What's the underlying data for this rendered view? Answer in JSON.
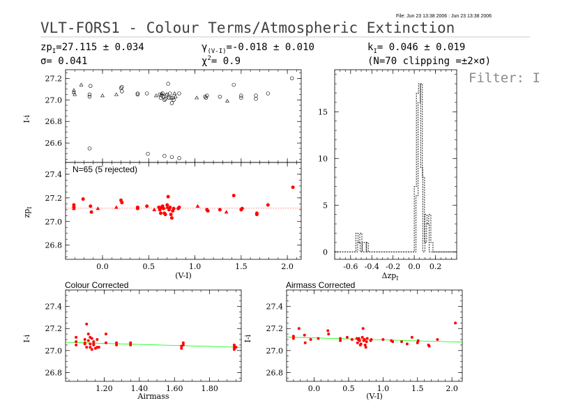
{
  "header": {
    "file_line": "File: Jun 23 13:38 2006 : Jun 23 13:38 2006",
    "title": "VLT-FORS1 - Colour Terms/Atmospheric Extinction",
    "zp": "zp",
    "zp_sub": "I",
    "zp_value": "=27.115 ± 0.034",
    "sigma": "σ= 0.041",
    "gamma": "γ",
    "gamma_sub": "(V-I)",
    "gamma_value": "=-0.018 ± 0.010",
    "chi": "χ",
    "chi_sup": "2",
    "chi_value": "=   0.9",
    "k": "k",
    "k_sub": "I",
    "k_value": "= 0.046 ± 0.019",
    "clip": "(N=70 clipping =±2×σ)",
    "filter": "Filter: I"
  },
  "colors": {
    "red": "#ff0000",
    "green": "#00ff00",
    "black": "#000000",
    "gray": "#c8c8c8"
  },
  "chart_data": [
    {
      "id": "top",
      "type": "scatter",
      "ylabel": "I-i",
      "ylim": [
        26.42,
        27.28
      ],
      "xlim": [
        -0.4,
        2.15
      ],
      "yticks": [
        26.6,
        26.8,
        27.0,
        27.2
      ],
      "xticks": [
        0,
        0.5,
        1,
        1.5,
        2
      ],
      "tick_labels_x": [],
      "markers": {
        "circle": [
          [
            -0.14,
            27.05
          ],
          [
            -0.14,
            27.03
          ],
          [
            -0.14,
            26.55
          ],
          [
            -0.13,
            27.13
          ],
          [
            0.2,
            27.11
          ],
          [
            0.21,
            27.12
          ],
          [
            0.21,
            27.08
          ],
          [
            0.38,
            27.05
          ],
          [
            0.38,
            27.06
          ],
          [
            0.48,
            27.06
          ],
          [
            0.49,
            26.5
          ],
          [
            0.62,
            27.05
          ],
          [
            0.63,
            27.02
          ],
          [
            0.64,
            27.04
          ],
          [
            0.65,
            27.06
          ],
          [
            0.66,
            27.03
          ],
          [
            0.67,
            27.0
          ],
          [
            0.68,
            27.01
          ],
          [
            0.69,
            27.04
          ],
          [
            0.7,
            27.05
          ],
          [
            0.71,
            27.15
          ],
          [
            0.72,
            27.02
          ],
          [
            0.73,
            27.06
          ],
          [
            0.74,
            27.02
          ],
          [
            0.75,
            26.97
          ],
          [
            0.76,
            27.02
          ],
          [
            0.77,
            27.0
          ],
          [
            0.67,
            26.48
          ],
          [
            0.75,
            26.47
          ],
          [
            0.83,
            27.06
          ],
          [
            0.83,
            26.46
          ],
          [
            1.11,
            27.03
          ],
          [
            1.12,
            27.02
          ],
          [
            1.13,
            27.04
          ],
          [
            1.27,
            27.03
          ],
          [
            1.42,
            27.14
          ],
          [
            1.5,
            27.04
          ],
          [
            1.5,
            27.02
          ],
          [
            1.66,
            27.01
          ],
          [
            1.66,
            27.04
          ],
          [
            1.79,
            27.06
          ],
          [
            2.05,
            27.2
          ]
        ],
        "triangle": [
          [
            -0.31,
            27.09
          ],
          [
            -0.31,
            27.07
          ],
          [
            -0.3,
            27.05
          ],
          [
            -0.23,
            27.14
          ],
          [
            0.0,
            27.04
          ],
          [
            0.15,
            27.05
          ],
          [
            0.58,
            27.04
          ],
          [
            0.64,
            27.06
          ],
          [
            0.78,
            27.06
          ],
          [
            0.79,
            27.03
          ],
          [
            1.02,
            27.02
          ],
          [
            1.35,
            26.99
          ]
        ]
      }
    },
    {
      "id": "middle",
      "type": "scatter",
      "ylabel": "zp",
      "ylabel_sub": "I",
      "xlabel": "(V-I)",
      "annotation": "N=65 (5 rejected)",
      "ylim": [
        26.68,
        27.5
      ],
      "xlim": [
        -0.4,
        2.15
      ],
      "yticks": [
        26.8,
        27.0,
        27.2,
        27.4
      ],
      "xticks": [
        0,
        0.5,
        1,
        1.5,
        2
      ],
      "tick_labels_x": [
        "0.0",
        "0.5",
        "1.0",
        "1.5",
        "2.0"
      ],
      "fit_line": {
        "y": 27.115,
        "style": "dotted"
      },
      "markers": {
        "dot": [
          [
            -0.31,
            27.14
          ],
          [
            -0.31,
            27.12
          ],
          [
            -0.21,
            27.19
          ],
          [
            -0.13,
            27.13
          ],
          [
            -0.12,
            27.08
          ],
          [
            0.2,
            27.18
          ],
          [
            0.21,
            27.16
          ],
          [
            0.38,
            27.12
          ],
          [
            0.38,
            27.11
          ],
          [
            0.48,
            27.13
          ],
          [
            0.61,
            27.12
          ],
          [
            0.62,
            27.1
          ],
          [
            0.63,
            27.07
          ],
          [
            0.64,
            27.12
          ],
          [
            0.65,
            27.13
          ],
          [
            0.66,
            27.11
          ],
          [
            0.67,
            27.07
          ],
          [
            0.68,
            27.06
          ],
          [
            0.7,
            27.14
          ],
          [
            0.71,
            27.21
          ],
          [
            0.72,
            27.1
          ],
          [
            0.73,
            27.12
          ],
          [
            0.74,
            27.06
          ],
          [
            0.75,
            27.03
          ],
          [
            0.76,
            27.09
          ],
          [
            0.77,
            27.11
          ],
          [
            0.82,
            27.11
          ],
          [
            0.83,
            27.12
          ],
          [
            1.13,
            27.1
          ],
          [
            1.14,
            27.09
          ],
          [
            1.27,
            27.1
          ],
          [
            1.42,
            27.22
          ],
          [
            1.5,
            27.1
          ],
          [
            1.51,
            27.11
          ],
          [
            1.67,
            27.07
          ],
          [
            1.67,
            27.06
          ],
          [
            1.79,
            27.14
          ],
          [
            2.06,
            27.29
          ]
        ],
        "triangle": [
          [
            -0.31,
            27.11
          ],
          [
            -0.05,
            27.11
          ],
          [
            0.15,
            27.12
          ],
          [
            0.56,
            27.1
          ],
          [
            0.7,
            27.12
          ],
          [
            1.03,
            27.13
          ],
          [
            1.34,
            27.08
          ]
        ]
      }
    },
    {
      "id": "histogram",
      "type": "bar",
      "xlabel": "Δzp",
      "xlabel_sub": "I",
      "xlim": [
        -0.75,
        0.4
      ],
      "ylim": [
        -0.8,
        19.5
      ],
      "yticks": [
        0,
        5,
        10,
        15
      ],
      "ytick_labels": [
        "0",
        "5",
        "10",
        "15"
      ],
      "xticks": [
        -0.6,
        -0.4,
        -0.2,
        0.0,
        0.2
      ],
      "xtick_labels": [
        "-0.6",
        "-0.4",
        "-0.2",
        "0.0",
        "0.2"
      ],
      "bin_edges": [
        -0.55,
        -0.53,
        -0.51,
        -0.49,
        -0.47,
        -0.45,
        -0.43,
        0.0,
        0.02,
        0.04,
        0.06,
        0.08,
        0.1,
        0.12,
        0.14,
        0.16,
        0.18
      ],
      "values_a": [
        2,
        1,
        0,
        1,
        1,
        0,
        0,
        7,
        17,
        18,
        9,
        0,
        4,
        3,
        0,
        0
      ],
      "values_b": [
        1,
        2,
        0,
        0,
        1,
        0,
        0,
        6,
        16,
        18,
        8,
        1,
        3,
        4,
        1,
        0
      ]
    },
    {
      "id": "colour_corrected",
      "type": "scatter",
      "title": "Colour Corrected",
      "xlabel": "Airmass",
      "ylabel": "I-i",
      "xlim": [
        0.98,
        1.98
      ],
      "ylim": [
        26.72,
        27.55
      ],
      "xticks": [
        1.2,
        1.4,
        1.6,
        1.8
      ],
      "xtick_labels": [
        "1.20",
        "1.40",
        "1.60",
        "1.80"
      ],
      "yticks": [
        26.8,
        27.0,
        27.2,
        27.4
      ],
      "fit_line": {
        "x": [
          0.98,
          1.98
        ],
        "y": [
          27.075,
          27.029
        ]
      },
      "points": [
        [
          1.04,
          27.05
        ],
        [
          1.04,
          27.08
        ],
        [
          1.04,
          27.12
        ],
        [
          1.09,
          27.07
        ],
        [
          1.09,
          27.1
        ],
        [
          1.09,
          27.06
        ],
        [
          1.1,
          27.24
        ],
        [
          1.1,
          27.03
        ],
        [
          1.11,
          27.15
        ],
        [
          1.11,
          27.09
        ],
        [
          1.12,
          27.06
        ],
        [
          1.12,
          27.03
        ],
        [
          1.12,
          27.12
        ],
        [
          1.13,
          27.11
        ],
        [
          1.13,
          27.01
        ],
        [
          1.14,
          27.08
        ],
        [
          1.14,
          27.05
        ],
        [
          1.14,
          27.06
        ],
        [
          1.15,
          27.02
        ],
        [
          1.16,
          27.03
        ],
        [
          1.16,
          27.1
        ],
        [
          1.17,
          27.03
        ],
        [
          1.21,
          27.15
        ],
        [
          1.21,
          27.07
        ],
        [
          1.27,
          27.05
        ],
        [
          1.27,
          27.07
        ],
        [
          1.35,
          27.05
        ],
        [
          1.35,
          27.07
        ],
        [
          1.64,
          27.04
        ],
        [
          1.64,
          27.02
        ],
        [
          1.65,
          27.07
        ],
        [
          1.65,
          27.05
        ],
        [
          1.94,
          27.01
        ],
        [
          1.94,
          27.05
        ],
        [
          1.94,
          27.03
        ],
        [
          1.95,
          27.03
        ]
      ]
    },
    {
      "id": "airmass_corrected",
      "type": "scatter",
      "title": "Airmass Corrected",
      "xlabel": "(V-I)",
      "ylabel": "I-i",
      "xlim": [
        -0.4,
        2.15
      ],
      "ylim": [
        26.72,
        27.55
      ],
      "xticks": [
        0,
        0.5,
        1,
        1.5,
        2
      ],
      "xtick_labels": [
        "0.0",
        "0.5",
        "1.0",
        "1.5",
        "2.0"
      ],
      "yticks": [
        26.8,
        27.0,
        27.2,
        27.4
      ],
      "fit_line": {
        "x": [
          -0.4,
          2.15
        ],
        "y": [
          27.122,
          27.076
        ]
      },
      "points": [
        [
          -0.3,
          27.13
        ],
        [
          -0.3,
          27.11
        ],
        [
          -0.22,
          27.2
        ],
        [
          -0.14,
          27.14
        ],
        [
          -0.13,
          27.07
        ],
        [
          -0.05,
          27.1
        ],
        [
          0.06,
          27.11
        ],
        [
          0.2,
          27.18
        ],
        [
          0.21,
          27.15
        ],
        [
          0.38,
          27.11
        ],
        [
          0.38,
          27.09
        ],
        [
          0.48,
          27.12
        ],
        [
          0.55,
          27.1
        ],
        [
          0.62,
          27.11
        ],
        [
          0.63,
          27.07
        ],
        [
          0.64,
          27.1
        ],
        [
          0.65,
          27.11
        ],
        [
          0.66,
          27.09
        ],
        [
          0.67,
          27.05
        ],
        [
          0.68,
          27.06
        ],
        [
          0.7,
          27.12
        ],
        [
          0.71,
          27.2
        ],
        [
          0.72,
          27.09
        ],
        [
          0.73,
          27.1
        ],
        [
          0.74,
          27.05
        ],
        [
          0.75,
          27.03
        ],
        [
          0.76,
          27.08
        ],
        [
          0.77,
          27.11
        ],
        [
          0.82,
          27.09
        ],
        [
          0.83,
          27.1
        ],
        [
          1.0,
          27.1
        ],
        [
          1.12,
          27.09
        ],
        [
          1.14,
          27.08
        ],
        [
          1.27,
          27.08
        ],
        [
          1.35,
          27.06
        ],
        [
          1.42,
          27.12
        ],
        [
          1.5,
          27.07
        ],
        [
          1.51,
          27.09
        ],
        [
          1.66,
          27.05
        ],
        [
          1.67,
          27.04
        ],
        [
          1.79,
          27.1
        ],
        [
          2.05,
          27.25
        ]
      ]
    }
  ]
}
